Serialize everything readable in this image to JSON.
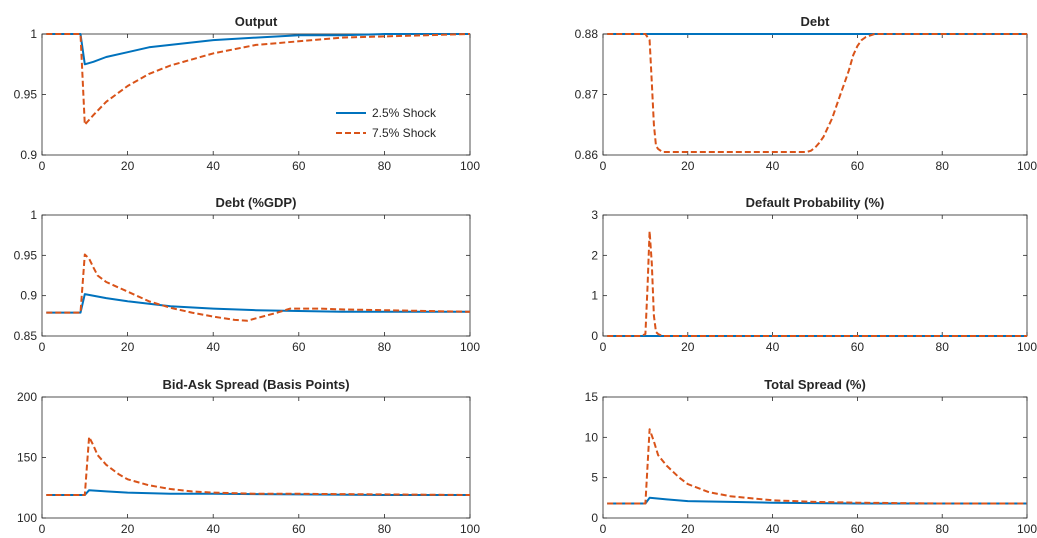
{
  "colors": {
    "series1": "#0072BD",
    "series2": "#D95319",
    "axis": "#262626"
  },
  "chart_data": [
    {
      "type": "line",
      "title": "Output",
      "xlim": [
        0,
        100
      ],
      "ylim": [
        0.9,
        1.0
      ],
      "xticks": [
        0,
        20,
        40,
        60,
        80,
        100
      ],
      "xtick_labels": [
        "0",
        "20",
        "40",
        "60",
        "80",
        "100"
      ],
      "yticks": [
        0.9,
        0.95,
        1.0
      ],
      "ytick_labels": [
        "0.9",
        "0.95",
        "1"
      ],
      "legend": {
        "position": "inside-right",
        "entries": [
          "2.5% Shock",
          "7.5% Shock"
        ]
      },
      "series": [
        {
          "name": "2.5% Shock",
          "style": "solid",
          "x": [
            1,
            9,
            10,
            12,
            15,
            20,
            25,
            30,
            40,
            50,
            60,
            70,
            80,
            90,
            100
          ],
          "y": [
            1.0,
            1.0,
            0.975,
            0.977,
            0.981,
            0.985,
            0.989,
            0.991,
            0.995,
            0.997,
            0.999,
            0.999,
            1.0,
            1.0,
            1.0
          ]
        },
        {
          "name": "7.5% Shock",
          "style": "dashed",
          "x": [
            1,
            9,
            10,
            12,
            15,
            20,
            25,
            30,
            40,
            50,
            60,
            70,
            80,
            90,
            100
          ],
          "y": [
            1.0,
            1.0,
            0.925,
            0.933,
            0.944,
            0.957,
            0.967,
            0.974,
            0.984,
            0.991,
            0.994,
            0.997,
            0.998,
            0.999,
            1.0
          ]
        }
      ]
    },
    {
      "type": "line",
      "title": "Debt",
      "xlim": [
        0,
        100
      ],
      "ylim": [
        0.86,
        0.88
      ],
      "xticks": [
        0,
        20,
        40,
        60,
        80,
        100
      ],
      "xtick_labels": [
        "0",
        "20",
        "40",
        "60",
        "80",
        "100"
      ],
      "yticks": [
        0.86,
        0.87,
        0.88
      ],
      "ytick_labels": [
        "0.86",
        "0.87",
        "0.88"
      ],
      "series": [
        {
          "name": "2.5% Shock",
          "style": "solid",
          "x": [
            1,
            100
          ],
          "y": [
            0.88,
            0.88
          ]
        },
        {
          "name": "7.5% Shock",
          "style": "dashed",
          "x": [
            1,
            10,
            11,
            11.5,
            12,
            12.5,
            13,
            14,
            48,
            49,
            50,
            51,
            52,
            53,
            54,
            55,
            56,
            57,
            58,
            59,
            60,
            61,
            62,
            64,
            100
          ],
          "y": [
            0.88,
            0.88,
            0.879,
            0.872,
            0.865,
            0.8615,
            0.861,
            0.8605,
            0.8605,
            0.8607,
            0.8612,
            0.862,
            0.863,
            0.8645,
            0.866,
            0.868,
            0.87,
            0.872,
            0.874,
            0.8765,
            0.878,
            0.879,
            0.8795,
            0.88,
            0.88
          ]
        }
      ]
    },
    {
      "type": "line",
      "title": "Debt (%GDP)",
      "xlim": [
        0,
        100
      ],
      "ylim": [
        0.85,
        1.0
      ],
      "xticks": [
        0,
        20,
        40,
        60,
        80,
        100
      ],
      "xtick_labels": [
        "0",
        "20",
        "40",
        "60",
        "80",
        "100"
      ],
      "yticks": [
        0.85,
        0.9,
        0.95,
        1.0
      ],
      "ytick_labels": [
        "0.85",
        "0.9",
        "0.95",
        "1"
      ],
      "series": [
        {
          "name": "2.5% Shock",
          "style": "solid",
          "x": [
            1,
            9,
            10,
            15,
            20,
            30,
            40,
            50,
            60,
            70,
            80,
            90,
            100
          ],
          "y": [
            0.879,
            0.879,
            0.902,
            0.897,
            0.893,
            0.887,
            0.884,
            0.882,
            0.881,
            0.88,
            0.88,
            0.88,
            0.88
          ]
        },
        {
          "name": "7.5% Shock",
          "style": "dashed",
          "x": [
            1,
            9,
            10,
            11,
            12,
            13,
            15,
            20,
            25,
            30,
            35,
            40,
            45,
            48,
            50,
            55,
            58,
            60,
            65,
            70,
            80,
            90,
            100
          ],
          "y": [
            0.879,
            0.879,
            0.951,
            0.946,
            0.935,
            0.925,
            0.917,
            0.905,
            0.893,
            0.885,
            0.879,
            0.874,
            0.87,
            0.869,
            0.872,
            0.879,
            0.884,
            0.884,
            0.884,
            0.883,
            0.882,
            0.881,
            0.88
          ]
        }
      ]
    },
    {
      "type": "line",
      "title": "Default Probability (%)",
      "xlim": [
        0,
        100
      ],
      "ylim": [
        0,
        3
      ],
      "xticks": [
        0,
        20,
        40,
        60,
        80,
        100
      ],
      "xtick_labels": [
        "0",
        "20",
        "40",
        "60",
        "80",
        "100"
      ],
      "yticks": [
        0,
        1,
        2,
        3
      ],
      "ytick_labels": [
        "0",
        "1",
        "2",
        "3"
      ],
      "series": [
        {
          "name": "2.5% Shock",
          "style": "solid",
          "x": [
            1,
            100
          ],
          "y": [
            0,
            0
          ]
        },
        {
          "name": "7.5% Shock",
          "style": "dashed",
          "x": [
            1,
            9,
            10,
            10.5,
            11,
            11.5,
            12,
            12.5,
            13,
            14,
            100
          ],
          "y": [
            0,
            0,
            0.05,
            1.2,
            2.6,
            1.8,
            0.5,
            0.1,
            0.05,
            0,
            0
          ]
        }
      ]
    },
    {
      "type": "line",
      "title": "Bid-Ask Spread (Basis Points)",
      "xlim": [
        0,
        100
      ],
      "ylim": [
        100,
        200
      ],
      "xticks": [
        0,
        20,
        40,
        60,
        80,
        100
      ],
      "xtick_labels": [
        "0",
        "20",
        "40",
        "60",
        "80",
        "100"
      ],
      "yticks": [
        100,
        150,
        200
      ],
      "ytick_labels": [
        "100",
        "150",
        "200"
      ],
      "series": [
        {
          "name": "2.5% Shock",
          "style": "solid",
          "x": [
            1,
            10,
            11,
            15,
            20,
            30,
            40,
            60,
            80,
            100
          ],
          "y": [
            119,
            119,
            123,
            122,
            121,
            120,
            120,
            119.5,
            119,
            119
          ]
        },
        {
          "name": "7.5% Shock",
          "style": "dashed",
          "x": [
            1,
            10,
            11,
            12,
            13,
            15,
            18,
            20,
            25,
            30,
            35,
            40,
            50,
            60,
            80,
            100
          ],
          "y": [
            119,
            119,
            167,
            160,
            152,
            144,
            136,
            132,
            127,
            124,
            122,
            121,
            120,
            120,
            119.5,
            119
          ]
        }
      ]
    },
    {
      "type": "line",
      "title": "Total Spread (%)",
      "xlim": [
        0,
        100
      ],
      "ylim": [
        0,
        15
      ],
      "xticks": [
        0,
        20,
        40,
        60,
        80,
        100
      ],
      "xtick_labels": [
        "0",
        "20",
        "40",
        "60",
        "80",
        "100"
      ],
      "yticks": [
        0,
        5,
        10,
        15
      ],
      "ytick_labels": [
        "0",
        "5",
        "10",
        "15"
      ],
      "series": [
        {
          "name": "2.5% Shock",
          "style": "solid",
          "x": [
            1,
            10,
            11,
            15,
            20,
            30,
            40,
            60,
            100
          ],
          "y": [
            1.8,
            1.8,
            2.5,
            2.3,
            2.1,
            2.0,
            1.9,
            1.8,
            1.8
          ]
        },
        {
          "name": "7.5% Shock",
          "style": "dashed",
          "x": [
            1,
            10,
            11,
            12,
            13,
            15,
            18,
            20,
            25,
            30,
            40,
            50,
            60,
            80,
            100
          ],
          "y": [
            1.8,
            1.8,
            11.0,
            9.5,
            7.8,
            6.5,
            5.0,
            4.2,
            3.2,
            2.7,
            2.2,
            2.0,
            1.9,
            1.8,
            1.8
          ]
        }
      ]
    }
  ]
}
